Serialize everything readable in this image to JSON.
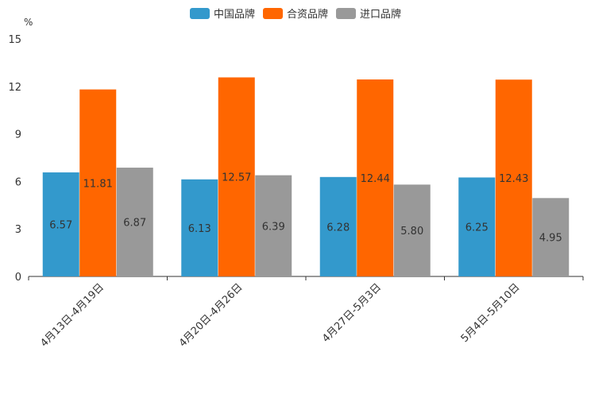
{
  "chart_data": {
    "type": "bar",
    "ylabel": "%",
    "ylim": [
      0,
      15
    ],
    "yticks": [
      0,
      3,
      6,
      9,
      12,
      15
    ],
    "legend_position": "top-center",
    "categories": [
      "4月13日-4月19日",
      "4月20日-4月26日",
      "4月27日-5月3日",
      "5月4日-5月10日"
    ],
    "series": [
      {
        "name": "中国品牌",
        "color": "#3399cc",
        "values": [
          6.57,
          6.13,
          6.28,
          6.25
        ]
      },
      {
        "name": "合资品牌",
        "color": "#ff6600",
        "values": [
          11.81,
          12.57,
          12.44,
          12.43
        ]
      },
      {
        "name": "进口品牌",
        "color": "#999999",
        "values": [
          6.87,
          6.39,
          5.8,
          4.95
        ]
      }
    ]
  }
}
